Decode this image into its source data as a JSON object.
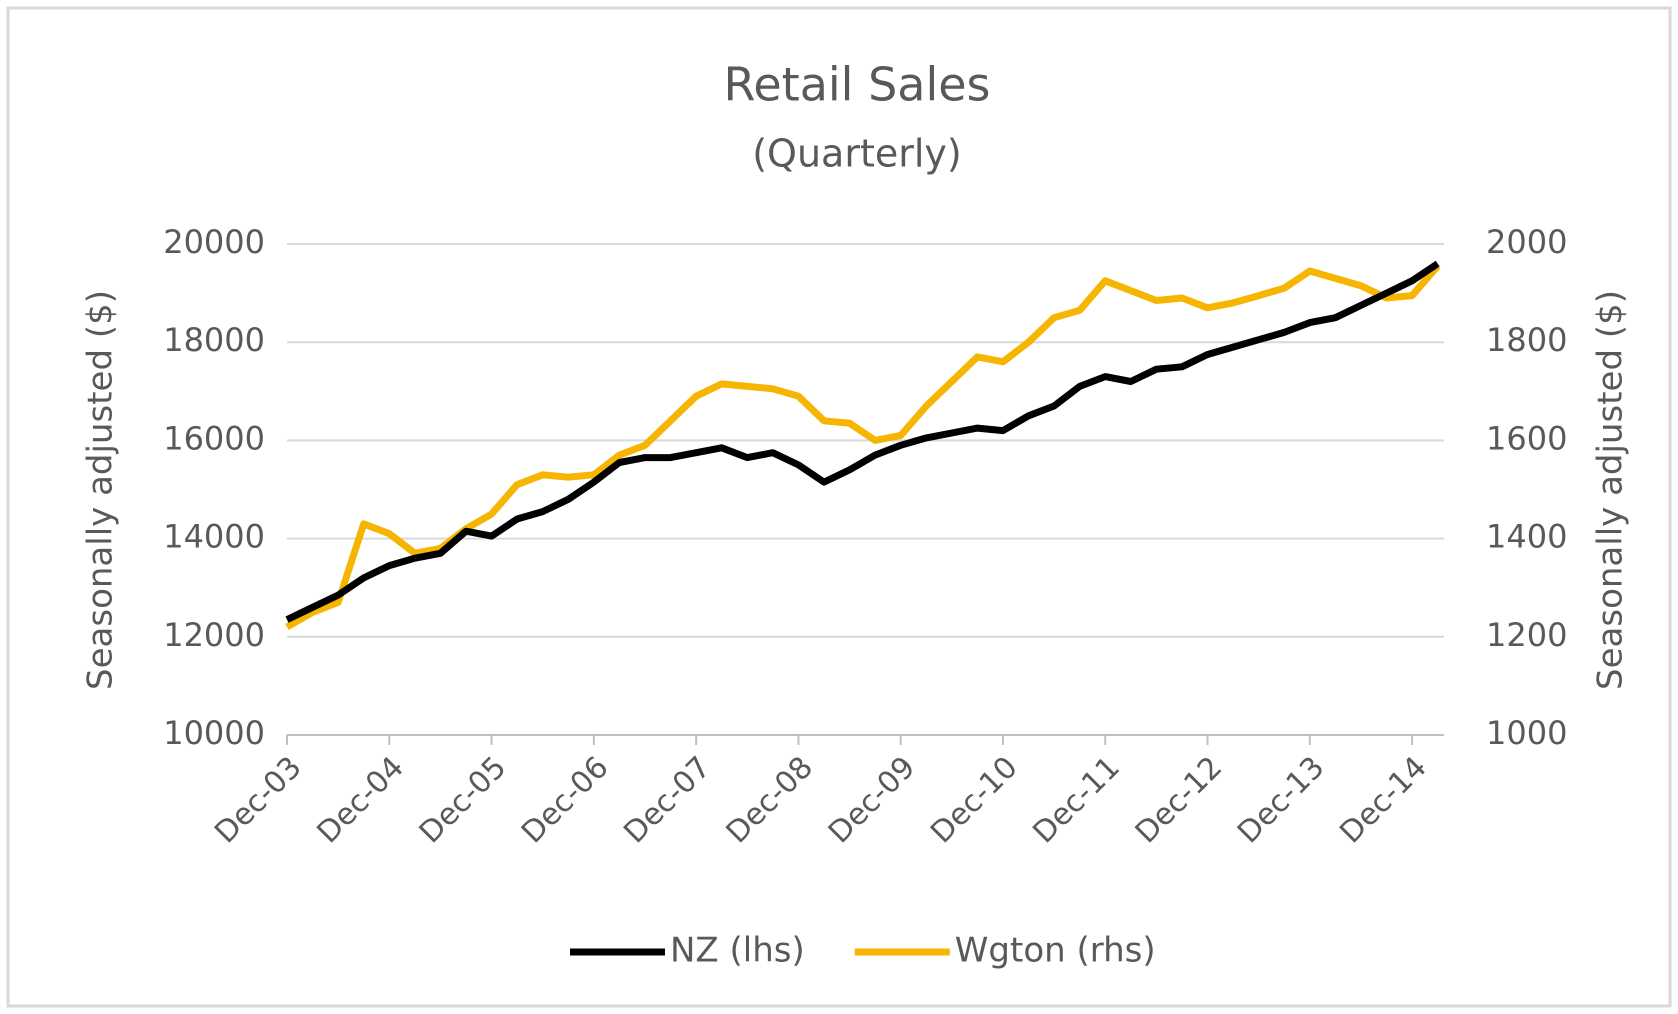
{
  "chart_data": {
    "type": "line",
    "title": "Retail Sales",
    "subtitle": "(Quarterly)",
    "y_label": "Seasonally adjusted ($)",
    "y2_label": "Seasonally adjusted ($)",
    "categories": [
      "Dec-03",
      null,
      null,
      null,
      "Dec-04",
      null,
      null,
      null,
      "Dec-05",
      null,
      null,
      null,
      "Dec-06",
      null,
      null,
      null,
      "Dec-07",
      null,
      null,
      null,
      "Dec-08",
      null,
      null,
      null,
      "Dec-09",
      null,
      null,
      null,
      "Dec-10",
      null,
      null,
      null,
      "Dec-11",
      null,
      null,
      null,
      "Dec-12",
      null,
      null,
      null,
      "Dec-13",
      null,
      null,
      null,
      "Dec-14",
      null
    ],
    "series": [
      {
        "name": "NZ (lhs)",
        "color": "#000000",
        "values": [
          12350,
          12600,
          12850,
          13200,
          13450,
          13600,
          13700,
          14150,
          14050,
          14400,
          14550,
          14800,
          15150,
          15550,
          15650,
          15650,
          15750,
          15850,
          15650,
          15750,
          15500,
          15150,
          15400,
          15700,
          15900,
          16050,
          16150,
          16250,
          16200,
          16500,
          16700,
          17100,
          17300,
          17200,
          17450,
          17500,
          17750,
          17900,
          18050,
          18200,
          18400,
          18500,
          18750,
          19000,
          19250,
          19600
        ]
      },
      {
        "name": "Wgton (rhs)",
        "color": "#f5b500",
        "axis": "y2",
        "values": [
          1220,
          1250,
          1270,
          1430,
          1410,
          1370,
          1380,
          1420,
          1450,
          1510,
          1530,
          1525,
          1530,
          1570,
          1590,
          1640,
          1690,
          1715,
          1710,
          1705,
          1690,
          1640,
          1635,
          1600,
          1610,
          1670,
          1720,
          1770,
          1760,
          1800,
          1850,
          1865,
          1925,
          1905,
          1885,
          1890,
          1870,
          1880,
          1895,
          1910,
          1945,
          1930,
          1915,
          1890,
          1895,
          1955
        ]
      }
    ],
    "ylim": [
      10000,
      20000
    ],
    "yticks": [
      10000,
      12000,
      14000,
      16000,
      18000,
      20000
    ],
    "y2lim": [
      1000,
      2000
    ],
    "y2ticks": [
      1000,
      1200,
      1400,
      1600,
      1800,
      2000
    ],
    "grid": true,
    "legend": "bottom"
  }
}
